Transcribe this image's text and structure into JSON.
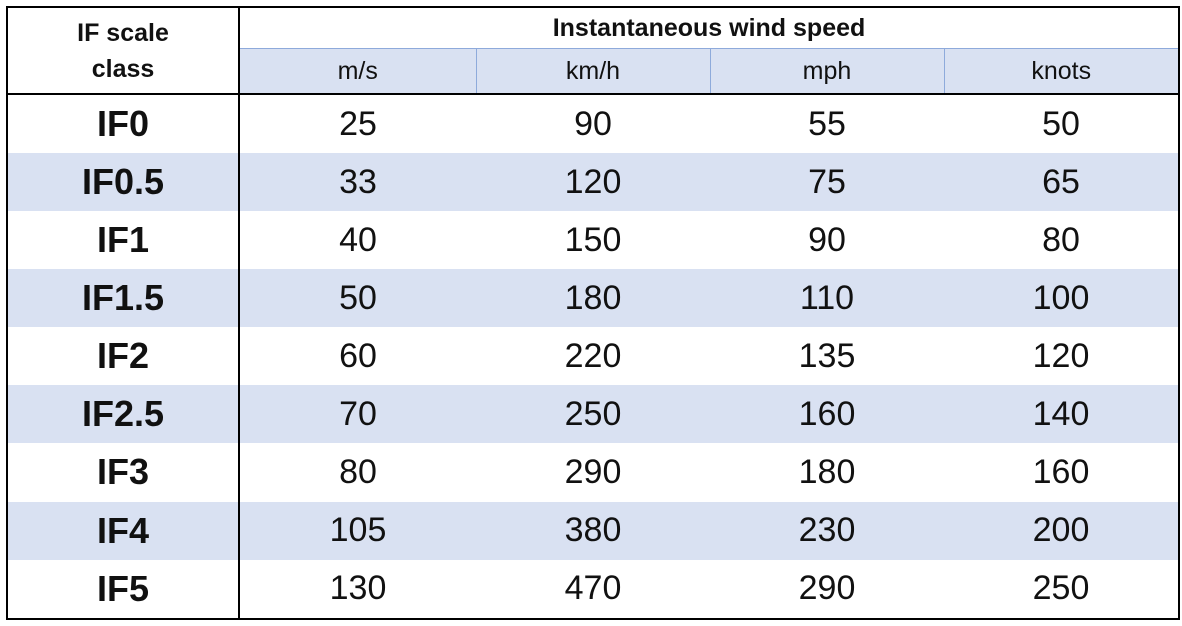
{
  "table": {
    "class_header": "IF scale\nclass",
    "group_header": "Instantaneous wind speed",
    "units": [
      "m/s",
      "km/h",
      "mph",
      "knots"
    ],
    "rows": [
      [
        "IF0",
        25,
        90,
        55,
        50
      ],
      [
        "IF0.5",
        33,
        120,
        75,
        65
      ],
      [
        "IF1",
        40,
        150,
        90,
        80
      ],
      [
        "IF1.5",
        50,
        180,
        110,
        100
      ],
      [
        "IF2",
        60,
        220,
        135,
        120
      ],
      [
        "IF2.5",
        70,
        250,
        160,
        140
      ],
      [
        "IF3",
        80,
        290,
        180,
        160
      ],
      [
        "IF4",
        105,
        380,
        230,
        200
      ],
      [
        "IF5",
        130,
        470,
        290,
        250
      ]
    ]
  }
}
